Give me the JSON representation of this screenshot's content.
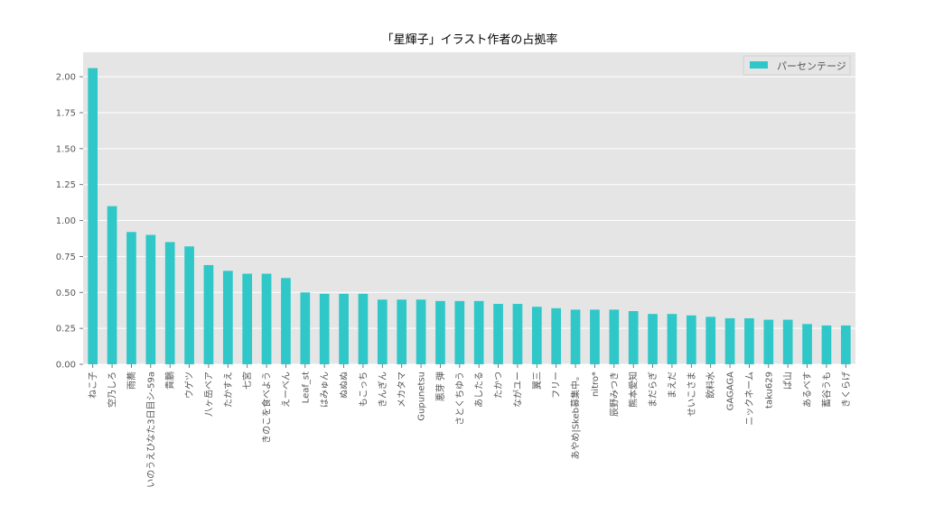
{
  "chart_data": {
    "type": "bar",
    "title": "「星輝子」イラスト作者の占拠率",
    "xlabel": "",
    "ylabel": "",
    "ylim": [
      0,
      2.17
    ],
    "yticks": [
      "0.00",
      "0.25",
      "0.50",
      "0.75",
      "1.00",
      "1.25",
      "1.50",
      "1.75",
      "2.00"
    ],
    "grid": true,
    "legend_position": "top-right",
    "colors": {
      "bar": "#2fc7c7",
      "plot_bg": "#e5e5e5",
      "grid": "#ffffff",
      "text": "#555555",
      "title": "#000000"
    },
    "categories": [
      "ねこ子",
      "空乃しろ",
      "雨蕎",
      "いのうえひなた3日目シ-59a",
      "貴鵬",
      "ウゲツ",
      "八ヶ岳ベア",
      "たかすえ",
      "七宮",
      "きのこを食べよう",
      "えーべん",
      "Leaf_st",
      "はみゅん",
      "ぬぬぬ",
      "もこっち",
      "きんぎん",
      "メカタマ",
      "Gupunetsu",
      "悪芽 弾",
      "さとくちゆう",
      "あしたる",
      "たかつ",
      "ながユー",
      "翼三",
      "フリー",
      "あやめ|Skeb募集中。",
      "nitro*",
      "辰野みつき",
      "熊本愛知",
      "まだらぎ",
      "まえだ",
      "せいこさま",
      "飲料水",
      "GAGAGA",
      "ニックネーム",
      "taku629",
      "ぱ山",
      "あるべす",
      "蓄谷うも",
      "きくらげ"
    ],
    "series": [
      {
        "name": "パーセンテージ",
        "values": [
          2.06,
          1.1,
          0.92,
          0.9,
          0.85,
          0.82,
          0.69,
          0.65,
          0.63,
          0.63,
          0.6,
          0.5,
          0.49,
          0.49,
          0.49,
          0.45,
          0.45,
          0.45,
          0.44,
          0.44,
          0.44,
          0.42,
          0.42,
          0.4,
          0.39,
          0.38,
          0.38,
          0.38,
          0.37,
          0.35,
          0.35,
          0.34,
          0.33,
          0.32,
          0.32,
          0.31,
          0.31,
          0.28,
          0.27,
          0.27
        ]
      }
    ]
  }
}
